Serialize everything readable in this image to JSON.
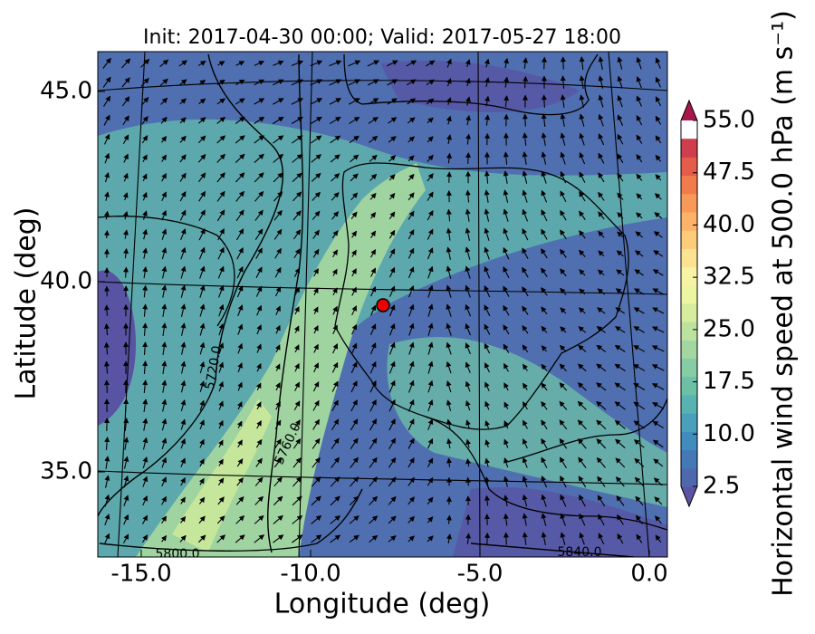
{
  "map": {
    "title": "Init: 2017-04-30 00:00; Valid: 2017-05-27 18:00",
    "xlabel": "Longitude (deg)",
    "ylabel": "Latitude (deg)",
    "xticks": [
      {
        "value": -15,
        "label": "-15.0"
      },
      {
        "value": -10,
        "label": "-10.0"
      },
      {
        "value": -5,
        "label": "-5.0"
      },
      {
        "value": 0,
        "label": "0.0"
      }
    ],
    "yticks": [
      {
        "value": 45,
        "label": "45.0"
      },
      {
        "value": 40,
        "label": "40.0"
      },
      {
        "value": 35,
        "label": "35.0"
      }
    ],
    "colorbar": {
      "label": "Horizontal wind speed at 500.0 hPa (m s⁻¹)",
      "lim": [
        2.5,
        55
      ],
      "ticks": [
        {
          "value": 55,
          "label": "55.0"
        },
        {
          "value": 47.5,
          "label": "47.5"
        },
        {
          "value": 40,
          "label": "40.0"
        },
        {
          "value": 32.5,
          "label": "32.5"
        },
        {
          "value": 25,
          "label": "25.0"
        },
        {
          "value": 17.5,
          "label": "17.5"
        },
        {
          "value": 10,
          "label": "10.0"
        },
        {
          "value": 2.5,
          "label": "2.5"
        }
      ],
      "colors": [
        "#5b54a4",
        "#4e68ad",
        "#4479b6",
        "#3f8cbd",
        "#4aa0bb",
        "#58b2b0",
        "#6bc0a6",
        "#86cca4",
        "#a2d7a2",
        "#bde2a0",
        "#d6ec9e",
        "#ecf5a2",
        "#f7f3a6",
        "#fbe391",
        "#fccc7a",
        "#fcb367",
        "#f99959",
        "#f27b4d",
        "#e35d4a",
        "#ce3e4d",
        "#a9164b"
      ]
    },
    "contour_labels": [
      "5720.0",
      "5760.0",
      "5800.0",
      "5840.0"
    ]
  }
}
